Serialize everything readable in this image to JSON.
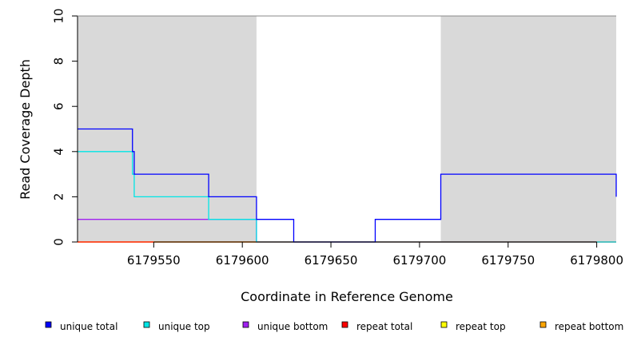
{
  "chart_data": {
    "type": "line",
    "title": "",
    "xlabel": "Coordinate in Reference Genome",
    "ylabel": "Read Coverage Depth",
    "xlim": [
      6179507,
      6179811
    ],
    "ylim": [
      0,
      10
    ],
    "x_ticks": [
      6179550,
      6179600,
      6179650,
      6179700,
      6179750,
      6179800
    ],
    "y_ticks": [
      0,
      2,
      4,
      6,
      8,
      10
    ],
    "shaded_regions": [
      {
        "x0": 6179507,
        "x1": 6179608,
        "color": "#d9d9d9"
      },
      {
        "x0": 6179712,
        "x1": 6179811,
        "color": "#d9d9d9"
      }
    ],
    "series": [
      {
        "name": "unique total",
        "color": "#0000ff",
        "steps": [
          [
            6179507,
            5
          ],
          [
            6179538,
            4
          ],
          [
            6179539,
            3
          ],
          [
            6179581,
            2
          ],
          [
            6179608,
            1
          ],
          [
            6179629,
            0
          ],
          [
            6179675,
            1
          ],
          [
            6179712,
            3
          ],
          [
            6179811,
            2
          ]
        ]
      },
      {
        "name": "unique top",
        "color": "#00e5e5",
        "steps": [
          [
            6179507,
            4
          ],
          [
            6179538,
            3
          ],
          [
            6179539,
            2
          ],
          [
            6179581,
            1
          ],
          [
            6179608,
            0
          ],
          [
            6179811,
            0
          ]
        ]
      },
      {
        "name": "unique bottom",
        "color": "#a020f0",
        "steps": [
          [
            6179507,
            1
          ],
          [
            6179608,
            0
          ],
          [
            6179811,
            0
          ]
        ]
      },
      {
        "name": "repeat total",
        "color": "#ff0000",
        "steps": [
          [
            6179507,
            0
          ],
          [
            6179811,
            0
          ]
        ]
      },
      {
        "name": "repeat top",
        "color": "#ffff00",
        "steps": [
          [
            6179507,
            0
          ],
          [
            6179811,
            0
          ]
        ]
      },
      {
        "name": "repeat bottom",
        "color": "#ffa500",
        "steps": [
          [
            6179507,
            0
          ],
          [
            6179811,
            0
          ]
        ]
      }
    ],
    "legend_position": "bottom"
  }
}
